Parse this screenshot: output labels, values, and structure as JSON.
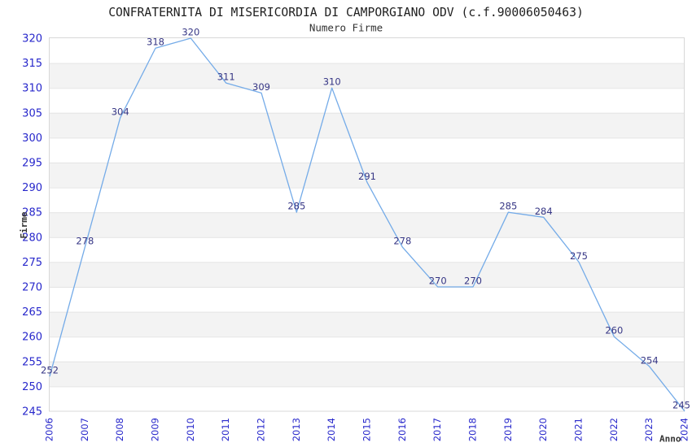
{
  "chart_data": {
    "type": "line",
    "title": "CONFRATERNITA DI MISERICORDIA DI CAMPORGIANO ODV (c.f.90006050463)",
    "subtitle": "Numero Firme",
    "xlabel": "Anno",
    "ylabel": "Firme",
    "categories": [
      "2006",
      "2007",
      "2008",
      "2009",
      "2010",
      "2011",
      "2012",
      "2013",
      "2014",
      "2015",
      "2016",
      "2017",
      "2018",
      "2019",
      "2020",
      "2021",
      "2022",
      "2023",
      "2024"
    ],
    "values": [
      252,
      278,
      304,
      318,
      320,
      311,
      309,
      285,
      310,
      291,
      278,
      270,
      270,
      285,
      284,
      275,
      260,
      254,
      245
    ],
    "ylim": [
      245,
      320
    ],
    "ytick_step": 5,
    "grid": true,
    "banded_background": true,
    "legend_position": "none",
    "data_labels_visible": true,
    "colors": {
      "line": "#74abe8",
      "tick_label": "#2727cb",
      "point_label": "#363685",
      "band": "#f3f3f3",
      "grid": "#e4e4e4",
      "border": "#d8d8d8",
      "title": "#1f1f1f",
      "subtitle": "#333333",
      "axis_title": "#333333"
    }
  }
}
